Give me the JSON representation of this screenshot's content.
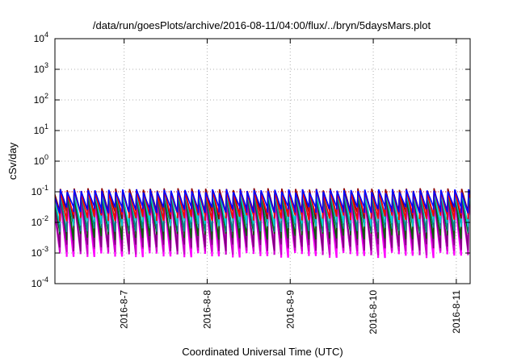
{
  "chart_data": {
    "type": "line",
    "title": "/data/run/goesPlots/archive/2016-08-11/04:00/flux/../bryn/5daysMars.plot",
    "xlabel": "Coordinated Universal Time (UTC)",
    "ylabel": "cSv/day",
    "y_scale": "log",
    "ylim_exp": [
      -4,
      4
    ],
    "y_ticks": [
      {
        "base": "10",
        "exp": "-4"
      },
      {
        "base": "10",
        "exp": "-3"
      },
      {
        "base": "10",
        "exp": "-2"
      },
      {
        "base": "10",
        "exp": "-1"
      },
      {
        "base": "10",
        "exp": "0"
      },
      {
        "base": "10",
        "exp": "1"
      },
      {
        "base": "10",
        "exp": "2"
      },
      {
        "base": "10",
        "exp": "3"
      },
      {
        "base": "10",
        "exp": "4"
      }
    ],
    "x_range": [
      "2016-08-06 04:00",
      "2016-08-11 04:00"
    ],
    "x_ticks": [
      {
        "label": "2016-8-7",
        "time": "2016-08-07 00:00"
      },
      {
        "label": "2016-8-8",
        "time": "2016-08-08 00:00"
      },
      {
        "label": "2016-8-9",
        "time": "2016-08-09 00:00"
      },
      {
        "label": "2016-8-10",
        "time": "2016-08-10 00:00"
      },
      {
        "label": "2016-8-11",
        "time": "2016-08-11 00:00"
      }
    ],
    "grid": true,
    "reference_line": {
      "value": 0.1,
      "color": "#ff0000",
      "style": "dotted"
    },
    "pulse_period_hours": 2,
    "series": [
      {
        "color": "#ff00ff",
        "peak": 0.06,
        "trough": 0.0009
      },
      {
        "color": "#cc00cc",
        "peak": 0.07,
        "trough": 0.0012
      },
      {
        "color": "#800080",
        "peak": 0.08,
        "trough": 0.0016
      },
      {
        "color": "#006400",
        "peak": 0.09,
        "trough": 0.0035
      },
      {
        "color": "#008b8b",
        "peak": 0.1,
        "trough": 0.006
      },
      {
        "color": "#00ced1",
        "peak": 0.1,
        "trough": 0.01
      },
      {
        "color": "#8b0000",
        "peak": 0.13,
        "trough": 0.018
      },
      {
        "color": "#ff0000",
        "peak": 0.11,
        "trough": 0.015
      },
      {
        "color": "#0000ff",
        "peak": 0.12,
        "trough": 0.025
      }
    ]
  }
}
